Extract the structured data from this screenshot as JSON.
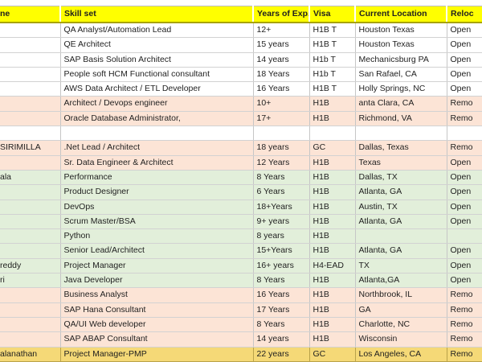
{
  "table": {
    "columns": [
      {
        "label": "ne"
      },
      {
        "label": "Skill set"
      },
      {
        "label": "Years of Exp."
      },
      {
        "label": "Visa"
      },
      {
        "label": "Current Location"
      },
      {
        "label": "Reloc"
      }
    ],
    "rows": [
      {
        "name": "",
        "skill": "QA Analyst/Automation Lead",
        "years": "12+",
        "visa": "H1B T",
        "location": "Houston Texas",
        "reloc": "Open",
        "bg": "none"
      },
      {
        "name": "",
        "skill": "QE Architect",
        "years": "15 years",
        "visa": "H1B T",
        "location": "Houston Texas",
        "reloc": "Open",
        "bg": "none"
      },
      {
        "name": "",
        "skill": "SAP Basis Solution Architect",
        "years": "14 years",
        "visa": "H1b T",
        "location": "Mechanicsburg PA",
        "reloc": "Open",
        "bg": "none"
      },
      {
        "name": "",
        "skill": "People soft HCM Functional consultant",
        "years": "18 Years",
        "visa": "H1b T",
        "location": "San Rafael, CA",
        "reloc": "Open",
        "bg": "none"
      },
      {
        "name": "",
        "skill": "AWS Data Architect / ETL Developer",
        "years": "16 Years",
        "visa": "H1B T",
        "location": "Holly Springs, NC",
        "reloc": "Open",
        "bg": "none"
      },
      {
        "name": "",
        "skill": "Architect / Devops engineer",
        "years": "10+",
        "visa": "H1B",
        "location": "anta Clara, CA",
        "reloc": "Remo",
        "bg": "peach"
      },
      {
        "name": "",
        "skill": "Oracle Database Administrator,",
        "years": "17+",
        "visa": "H1B",
        "location": "Richmond, VA",
        "reloc": "Remo",
        "bg": "peach"
      },
      {
        "name": "",
        "skill": "",
        "years": "",
        "visa": "",
        "location": "",
        "reloc": "",
        "bg": "none"
      },
      {
        "name": "SIRIMILLA",
        "skill": ".Net Lead / Architect",
        "years": "18 years",
        "visa": "GC",
        "location": "Dallas, Texas",
        "reloc": "Remo",
        "bg": "peach"
      },
      {
        "name": "",
        "skill": "Sr. Data Engineer & Architect",
        "years": "12 Years",
        "visa": "H1B",
        "location": "Texas",
        "reloc": "Open",
        "bg": "peach"
      },
      {
        "name": "ala",
        "skill": "Performance",
        "years": "8 Years",
        "visa": "H1B",
        "location": "Dallas, TX",
        "reloc": "Open",
        "bg": "green"
      },
      {
        "name": "",
        "skill": "Product Designer",
        "years": "6 Years",
        "visa": "H1B",
        "location": "Atlanta, GA",
        "reloc": "Open",
        "bg": "green"
      },
      {
        "name": "",
        "skill": "DevOps",
        "years": "18+Years",
        "visa": "H1B",
        "location": "Austin, TX",
        "reloc": "Open",
        "bg": "green"
      },
      {
        "name": "",
        "skill": "Scrum Master/BSA",
        "years": "9+ years",
        "visa": "H1B",
        "location": "Atlanta, GA",
        "reloc": "Open",
        "bg": "green"
      },
      {
        "name": "",
        "skill": "Python",
        "years": "8 years",
        "visa": "H1B",
        "location": "",
        "reloc": "",
        "bg": "green"
      },
      {
        "name": "",
        "skill": "Senior Lead/Architect",
        "years": "15+Years",
        "visa": "H1B",
        "location": "Atlanta, GA",
        "reloc": "Open",
        "bg": "green"
      },
      {
        "name": "reddy",
        "skill": "Project Manager",
        "years": "16+ years",
        "visa": "H4-EAD",
        "location": "TX",
        "reloc": "Open",
        "bg": "green"
      },
      {
        "name": "ri",
        "skill": "Java Developer",
        "years": "8 Years",
        "visa": "H1B",
        "location": "Atlanta,GA",
        "reloc": "Open",
        "bg": "green"
      },
      {
        "name": "",
        "skill": "Business Analyst",
        "years": "16 Years",
        "visa": "H1B",
        "location": "Northbrook, IL",
        "reloc": "Remo",
        "bg": "peach"
      },
      {
        "name": "",
        "skill": "SAP Hana Consultant",
        "years": "17 Years",
        "visa": "H1B",
        "location": "GA",
        "reloc": "Remo",
        "bg": "peach"
      },
      {
        "name": "",
        "skill": "QA/UI Web developer",
        "years": "8 Years",
        "visa": "H1B",
        "location": "Charlotte, NC",
        "reloc": "Remo",
        "bg": "peach"
      },
      {
        "name": "",
        "skill": "SAP ABAP Consultant",
        "years": "14 years",
        "visa": "H1B",
        "location": "Wisconsin",
        "reloc": "Remo",
        "bg": "peach"
      },
      {
        "name": "alanathan",
        "skill": "Project Manager-PMP",
        "years": "22 years",
        "visa": "GC",
        "location": "Los Angeles, CA",
        "reloc": "Remo",
        "bg": "gold"
      }
    ]
  },
  "colors": {
    "header_bg": "#ffff00",
    "row_bg": {
      "none": "#ffffff",
      "peach": "#fce4d6",
      "green": "#e2efda",
      "gold": "#f5d977"
    },
    "grid": "#c6c6c6",
    "text": "#1f1f1f"
  }
}
